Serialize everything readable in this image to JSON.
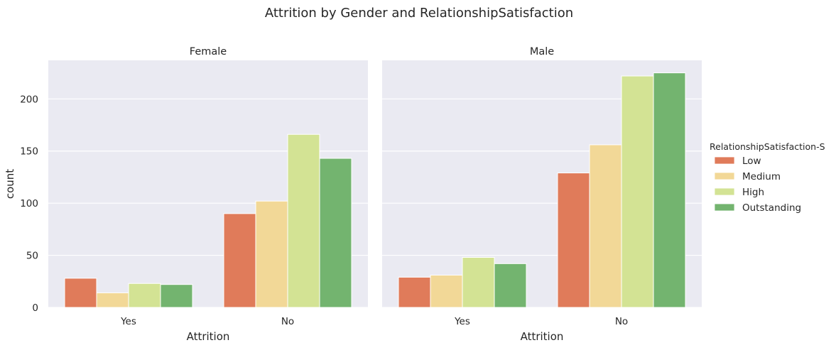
{
  "chart_data": {
    "type": "bar",
    "title": "Attrition by Gender and RelationshipSatisfaction",
    "facets": [
      {
        "title": "Female",
        "xlabel": "Attrition",
        "categories": [
          "Yes",
          "No"
        ],
        "series": [
          {
            "name": "Low",
            "values": [
              28,
              90
            ]
          },
          {
            "name": "Medium",
            "values": [
              14,
              102
            ]
          },
          {
            "name": "High",
            "values": [
              23,
              166
            ]
          },
          {
            "name": "Outstanding",
            "values": [
              22,
              143
            ]
          }
        ]
      },
      {
        "title": "Male",
        "xlabel": "Attrition",
        "categories": [
          "Yes",
          "No"
        ],
        "series": [
          {
            "name": "Low",
            "values": [
              29,
              129
            ]
          },
          {
            "name": "Medium",
            "values": [
              31,
              156
            ]
          },
          {
            "name": "High",
            "values": [
              48,
              222
            ]
          },
          {
            "name": "Outstanding",
            "values": [
              42,
              225
            ]
          }
        ]
      }
    ],
    "ylabel": "count",
    "ylim": [
      0,
      237
    ],
    "yticks": [
      0,
      50,
      100,
      150,
      200
    ],
    "grid": true,
    "legend": {
      "title": "RelationshipSatisfaction-S",
      "placement": "right",
      "entries": [
        "Low",
        "Medium",
        "High",
        "Outstanding"
      ]
    },
    "colors": {
      "Low": "#e07b5a",
      "Medium": "#f2d897",
      "High": "#d3e394",
      "Outstanding": "#73b46f",
      "plot_background": "#eaeaf2",
      "grid": "#ffffff"
    }
  }
}
